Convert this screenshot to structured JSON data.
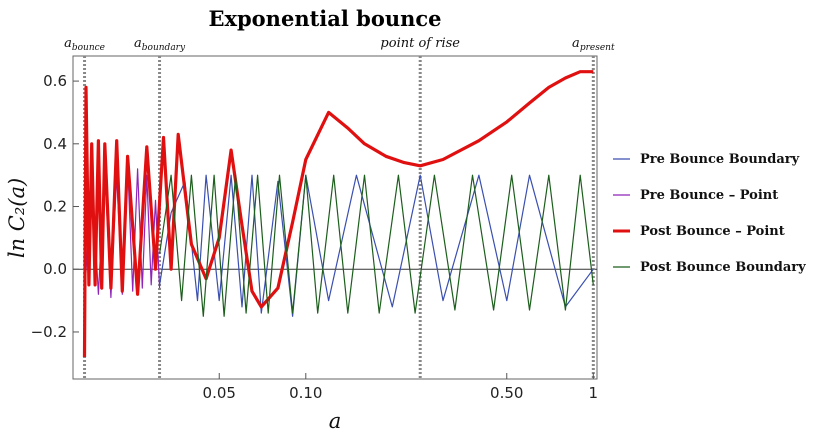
{
  "chart_data": {
    "type": "line",
    "title": "Exponential bounce",
    "xlabel": "a",
    "ylabel": "ln C₂(a)",
    "xscale": "log",
    "xlim": [
      0.0155,
      1.03
    ],
    "ylim": [
      -0.35,
      0.68
    ],
    "xticks": [
      {
        "value": 0.05,
        "label": "0.05"
      },
      {
        "value": 0.1,
        "label": "0.10"
      },
      {
        "value": 0.5,
        "label": "0.50"
      },
      {
        "value": 1.0,
        "label": "1"
      }
    ],
    "yticks": [
      {
        "value": -0.2,
        "label": "-0.2"
      },
      {
        "value": 0.0,
        "label": "0.0"
      },
      {
        "value": 0.2,
        "label": "0.2"
      },
      {
        "value": 0.4,
        "label": "0.4"
      },
      {
        "value": 0.6,
        "label": "0.6"
      }
    ],
    "grid": false,
    "legend_position": "right",
    "markers": [
      {
        "x": 0.017,
        "label": "a",
        "sub": "bounce"
      },
      {
        "x": 0.031,
        "label": "a",
        "sub": "boundary"
      },
      {
        "x": 0.25,
        "label": "point of rise",
        "sub": ""
      },
      {
        "x": 1.0,
        "label": "a",
        "sub": "present"
      }
    ],
    "series": [
      {
        "name": "Pre Bounce Boundary",
        "color": "#3a4fb0",
        "x": [
          0.031,
          0.034,
          0.038,
          0.042,
          0.045,
          0.05,
          0.055,
          0.06,
          0.065,
          0.07,
          0.08,
          0.09,
          0.1,
          0.12,
          0.15,
          0.2,
          0.25,
          0.3,
          0.4,
          0.5,
          0.6,
          0.8,
          1.0
        ],
        "y": [
          -0.05,
          0.18,
          0.28,
          -0.1,
          0.3,
          -0.1,
          0.3,
          -0.12,
          0.3,
          -0.14,
          0.28,
          -0.15,
          0.3,
          -0.1,
          0.3,
          -0.12,
          0.3,
          -0.1,
          0.3,
          -0.1,
          0.3,
          -0.12,
          0.0
        ]
      },
      {
        "name": "Pre Bounce – Point",
        "color": "#8e24b8",
        "x": [
          0.017,
          0.018,
          0.019,
          0.02,
          0.021,
          0.022,
          0.023,
          0.024,
          0.025,
          0.026,
          0.027,
          0.028,
          0.029,
          0.03,
          0.031
        ],
        "y": [
          -0.09,
          0.3,
          -0.08,
          0.32,
          -0.09,
          0.3,
          -0.08,
          0.34,
          -0.07,
          0.32,
          -0.06,
          0.3,
          -0.05,
          0.22,
          -0.06
        ]
      },
      {
        "name": "Post Bounce – Point",
        "color": "#e01010",
        "x": [
          0.017,
          0.0172,
          0.0176,
          0.018,
          0.0185,
          0.019,
          0.0195,
          0.02,
          0.021,
          0.022,
          0.023,
          0.024,
          0.026,
          0.028,
          0.03,
          0.032,
          0.034,
          0.036,
          0.04,
          0.045,
          0.05,
          0.055,
          0.06,
          0.065,
          0.07,
          0.08,
          0.09,
          0.1,
          0.12,
          0.14,
          0.16,
          0.19,
          0.22,
          0.25,
          0.3,
          0.4,
          0.5,
          0.6,
          0.7,
          0.8,
          0.9,
          1.0
        ],
        "y": [
          -0.28,
          0.58,
          -0.05,
          0.4,
          -0.05,
          0.41,
          -0.06,
          0.4,
          -0.06,
          0.41,
          -0.07,
          0.36,
          -0.08,
          0.39,
          0.0,
          0.42,
          0.0,
          0.43,
          0.08,
          -0.03,
          0.1,
          0.38,
          0.14,
          -0.07,
          -0.12,
          -0.06,
          0.15,
          0.35,
          0.5,
          0.45,
          0.4,
          0.36,
          0.34,
          0.33,
          0.35,
          0.41,
          0.47,
          0.53,
          0.58,
          0.61,
          0.63,
          0.63
        ]
      },
      {
        "name": "Post Bounce Boundary",
        "color": "#1c5e1c",
        "x": [
          0.031,
          0.034,
          0.037,
          0.04,
          0.044,
          0.048,
          0.052,
          0.057,
          0.062,
          0.068,
          0.074,
          0.081,
          0.09,
          0.1,
          0.11,
          0.125,
          0.14,
          0.16,
          0.18,
          0.21,
          0.24,
          0.28,
          0.33,
          0.38,
          0.45,
          0.52,
          0.6,
          0.7,
          0.8,
          0.9,
          1.0
        ],
        "y": [
          0.05,
          0.3,
          -0.1,
          0.3,
          -0.15,
          0.3,
          -0.15,
          0.3,
          -0.14,
          0.3,
          -0.14,
          0.3,
          -0.14,
          0.3,
          -0.14,
          0.3,
          -0.14,
          0.3,
          -0.14,
          0.3,
          -0.14,
          0.3,
          -0.13,
          0.3,
          -0.13,
          0.3,
          -0.13,
          0.3,
          -0.13,
          0.3,
          -0.05
        ]
      }
    ]
  }
}
